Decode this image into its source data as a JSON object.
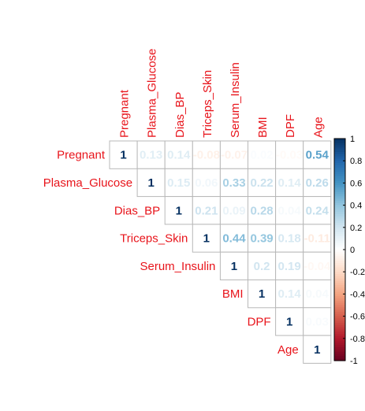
{
  "chart_data": {
    "type": "heatmap",
    "variables": [
      "Pregnant",
      "Plasma_Glucose",
      "Dias_BP",
      "Triceps_Skin",
      "Serum_Insulin",
      "BMI",
      "DPF",
      "Age"
    ],
    "matrix_upper": [
      [
        1,
        0.13,
        0.14,
        -0.08,
        -0.07,
        0.02,
        -0.03,
        0.54
      ],
      [
        null,
        1,
        0.15,
        0.06,
        0.33,
        0.22,
        0.14,
        0.26
      ],
      [
        null,
        null,
        1,
        0.21,
        0.09,
        0.28,
        0.04,
        0.24
      ],
      [
        null,
        null,
        null,
        1,
        0.44,
        0.39,
        0.18,
        -0.11
      ],
      [
        null,
        null,
        null,
        null,
        1,
        0.2,
        0.19,
        -0.04
      ],
      [
        null,
        null,
        null,
        null,
        null,
        1,
        0.14,
        0.04
      ],
      [
        null,
        null,
        null,
        null,
        null,
        null,
        1,
        0.03
      ],
      [
        null,
        null,
        null,
        null,
        null,
        null,
        null,
        1
      ]
    ],
    "value_labels": [
      [
        "1",
        "0.13",
        "0.14",
        "-0.08",
        "-0.07",
        "0.02",
        "-0.03",
        "0.54"
      ],
      [
        null,
        "1",
        "0.15",
        "0.06",
        "0.33",
        "0.22",
        "0.14",
        "0.26"
      ],
      [
        null,
        null,
        "1",
        "0.21",
        "0.09",
        "0.28",
        "0.04",
        "0.24"
      ],
      [
        null,
        null,
        null,
        "1",
        "0.44",
        "0.39",
        "0.18",
        "-0.11"
      ],
      [
        null,
        null,
        null,
        null,
        "1",
        "0.2",
        "0.19",
        "-0.04"
      ],
      [
        null,
        null,
        null,
        null,
        null,
        "1",
        "0.14",
        "0.04"
      ],
      [
        null,
        null,
        null,
        null,
        null,
        null,
        "1",
        "0.03"
      ],
      [
        null,
        null,
        null,
        null,
        null,
        null,
        null,
        "1"
      ]
    ],
    "colorbar": {
      "range": [
        -1,
        1
      ],
      "ticks": [
        -1,
        -0.8,
        -0.6,
        -0.4,
        -0.2,
        0,
        0.2,
        0.4,
        0.6,
        0.8,
        1
      ],
      "tick_labels": [
        "-1",
        "-0.8",
        "-0.6",
        "-0.4",
        "-0.2",
        "0",
        "0.2",
        "0.4",
        "0.6",
        "0.8",
        "1"
      ],
      "colors_neg_to_pos": [
        "#67001f",
        "#b2182b",
        "#d6604d",
        "#f4a582",
        "#fddbc7",
        "#ffffff",
        "#d1e5f0",
        "#92c5de",
        "#4393c3",
        "#2166ac",
        "#053061"
      ]
    },
    "label_color": "#e8141b"
  }
}
